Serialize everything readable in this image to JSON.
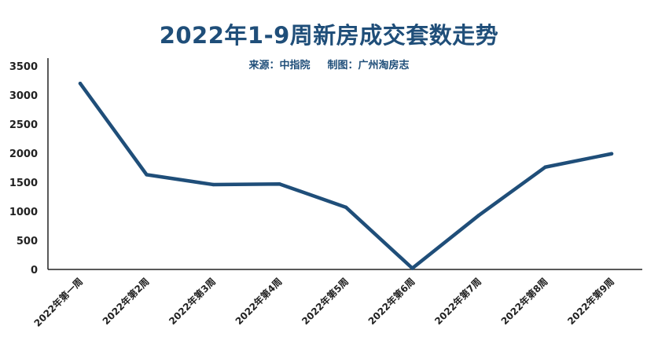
{
  "chart_data": {
    "type": "line",
    "title": "2022年1-9周新房成交套数走势",
    "subtitle": {
      "source": "来源：中指院",
      "author": "制图：广州淘房志"
    },
    "categories": [
      "2022年第一周",
      "2022年第2周",
      "2022年第3周",
      "2022年第4周",
      "2022年第5周",
      "2022年第6周",
      "2022年第7周",
      "2022年第8周",
      "2022年第9周"
    ],
    "values": [
      3200,
      1630,
      1460,
      1470,
      1070,
      20,
      930,
      1760,
      1990
    ],
    "ylim": [
      0,
      3500
    ],
    "yticks": [
      0,
      500,
      1000,
      1500,
      2000,
      2500,
      3000,
      3500
    ],
    "grid": false,
    "legend": "none",
    "line_color": "#1f4e79"
  }
}
